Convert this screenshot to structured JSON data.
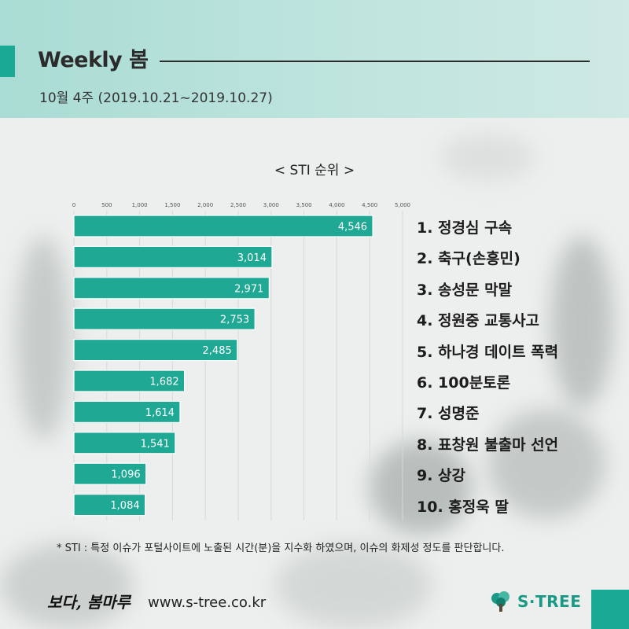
{
  "header": {
    "title": "Weekly 봄",
    "subtitle": "10월 4주 (2019.10.21~2019.10.27)"
  },
  "colors": {
    "accent": "#1aa995",
    "bar": "#1fa894",
    "bar_stroke": "#ffffff"
  },
  "chart_data": {
    "type": "bar",
    "orientation": "horizontal",
    "title": "< STI 순위 >",
    "xlim": [
      0,
      5000
    ],
    "xticks": [
      "0",
      "500",
      "1,000",
      "1,500",
      "2,000",
      "2,500",
      "3,000",
      "3,500",
      "4,000",
      "4,500",
      "5,000"
    ],
    "grid": true,
    "values": [
      4546,
      3014,
      2971,
      2753,
      2485,
      1682,
      1614,
      1541,
      1096,
      1084
    ],
    "value_labels": [
      "4,546",
      "3,014",
      "2,971",
      "2,753",
      "2,485",
      "1,682",
      "1,614",
      "1,541",
      "1,096",
      "1,084"
    ],
    "categories": [
      "1. 정경심 구속",
      "2. 축구(손흥민)",
      "3. 송성문 막말",
      "4. 정원중 교통사고",
      "5. 하나경 데이트 폭력",
      "6. 100분토론",
      "7. 성명준",
      "8. 표창원 불출마 선언",
      "9. 상강",
      "10. 홍정욱 딸"
    ]
  },
  "footnote": "* STI : 특정 이슈가 포털사이트에 노출된 시간(분)을 지수화 하였으며, 이슈의 화제성 정도를 판단합니다.",
  "footer": {
    "brand_script": "보다, 봄마루",
    "url": "www.s-tree.co.kr",
    "logo_text": "S·TREE",
    "logo_icon": "tree-icon"
  }
}
